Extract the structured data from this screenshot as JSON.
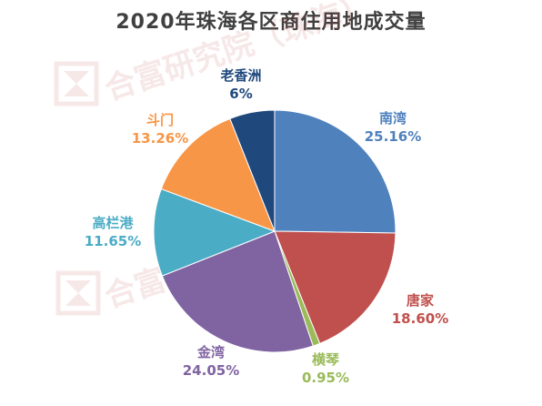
{
  "chart_data": {
    "type": "pie",
    "title": "2020年珠海各区商住用地成交量",
    "series": [
      {
        "name": "南湾",
        "value": 25.16,
        "value_label": "25.16%",
        "color": "#4f81bd"
      },
      {
        "name": "唐家",
        "value": 18.6,
        "value_label": "18.60%",
        "color": "#c0504d"
      },
      {
        "name": "横琴",
        "value": 0.95,
        "value_label": "0.95%",
        "color": "#9bbb59"
      },
      {
        "name": "金湾",
        "value": 24.05,
        "value_label": "24.05%",
        "color": "#8064a2"
      },
      {
        "name": "高栏港",
        "value": 11.65,
        "value_label": "11.65%",
        "color": "#4bacc6"
      },
      {
        "name": "斗门",
        "value": 13.26,
        "value_label": "13.26%",
        "color": "#f79646"
      },
      {
        "name": "老香洲",
        "value": 6,
        "value_label": "6%",
        "color": "#1f497d"
      }
    ]
  },
  "watermark": {
    "text": "合富研究院（珠海）",
    "color": "#c0504d"
  }
}
